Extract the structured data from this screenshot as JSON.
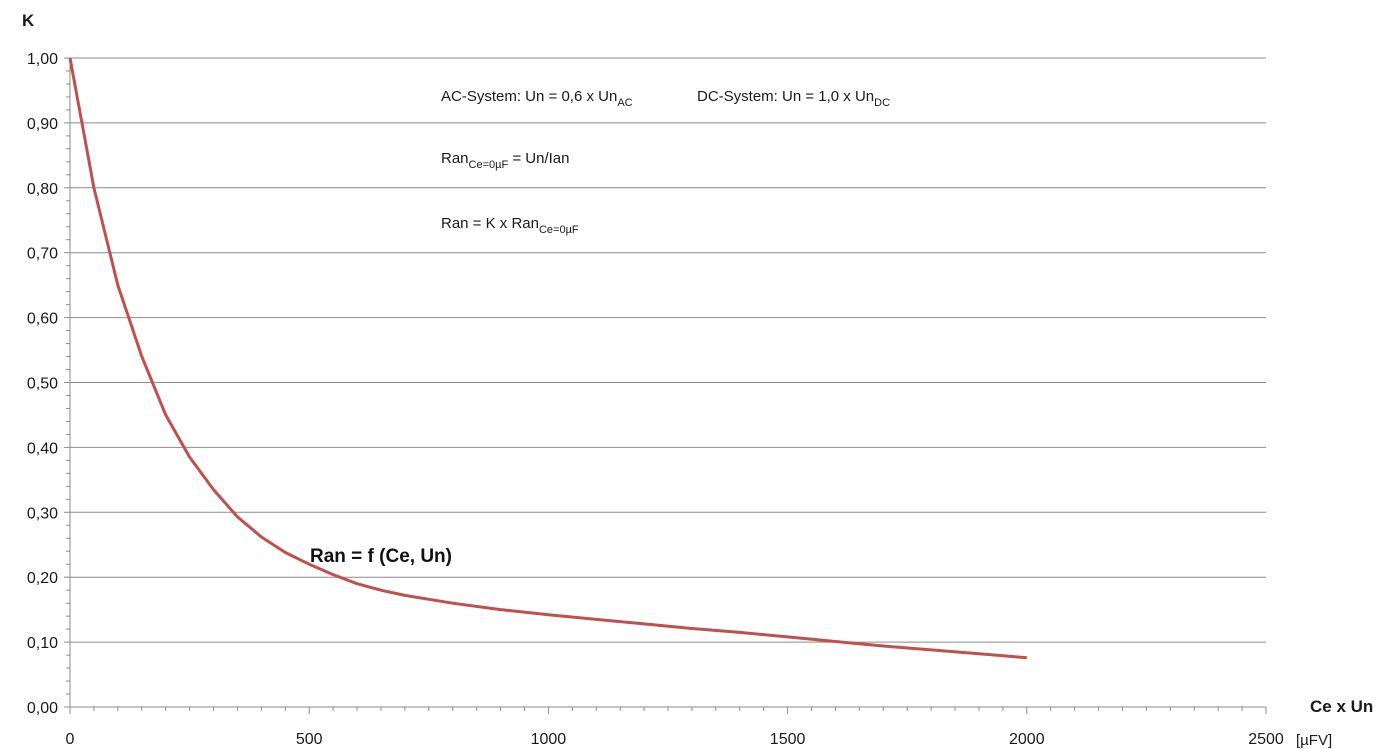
{
  "chart_data": {
    "type": "line",
    "title": "",
    "xlabel": "Ce x Un",
    "xunit": "[µFV]",
    "ylabel": "K",
    "xlim": [
      0,
      2500
    ],
    "ylim": [
      0,
      1.0
    ],
    "x_ticks": [
      0,
      500,
      1000,
      1500,
      2000,
      2500
    ],
    "x_tick_labels": [
      "0",
      "500",
      "1000",
      "1500",
      "2000",
      "2500"
    ],
    "y_ticks": [
      0,
      0.1,
      0.2,
      0.3,
      0.4,
      0.5,
      0.6,
      0.7,
      0.8,
      0.9,
      1.0
    ],
    "y_tick_labels": [
      "0,00",
      "0,10",
      "0,20",
      "0,30",
      "0,40",
      "0,50",
      "0,60",
      "0,70",
      "0,80",
      "0,90",
      "1,00"
    ],
    "grid": "horizontal",
    "series": [
      {
        "color": "#c0504d",
        "x": [
          0,
          50,
          100,
          150,
          200,
          250,
          300,
          350,
          400,
          450,
          500,
          550,
          600,
          650,
          700,
          800,
          900,
          1000,
          1100,
          1200,
          1300,
          1400,
          1500,
          1600,
          1700,
          1800,
          1900,
          2000
        ],
        "y": [
          1.0,
          0.8,
          0.65,
          0.54,
          0.45,
          0.385,
          0.335,
          0.293,
          0.262,
          0.238,
          0.22,
          0.204,
          0.19,
          0.18,
          0.172,
          0.16,
          0.15,
          0.142,
          0.135,
          0.128,
          0.121,
          0.115,
          0.108,
          0.101,
          0.094,
          0.088,
          0.082,
          0.076
        ]
      }
    ],
    "annotations": {
      "ac_system": {
        "prefix": "AC-System: Un = 0,6 x Un",
        "sub": "AC"
      },
      "dc_system": {
        "prefix": "DC-System: Un = 1,0 x Un",
        "sub": "DC"
      },
      "formula1": {
        "prefix": "Ran",
        "sub": "Ce=0µF",
        "suffix": " = Un/Ian"
      },
      "formula2": {
        "prefix": "Ran = K x Ran",
        "sub": "Ce=0µF"
      },
      "curve_label": "Ran = f (Ce, Un)"
    }
  }
}
